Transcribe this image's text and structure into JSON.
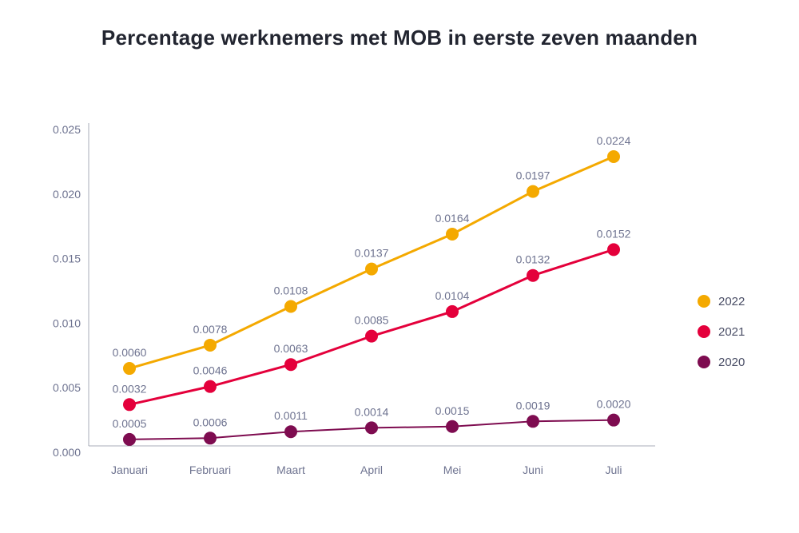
{
  "chart_data": {
    "type": "line",
    "title": "Percentage werknemers met MOB in eerste zeven maanden",
    "xlabel": "",
    "ylabel": "",
    "categories": [
      "Januari",
      "Februari",
      "Maart",
      "April",
      "Mei",
      "Juni",
      "Juli"
    ],
    "ylim": [
      0,
      0.025
    ],
    "yticks": [
      "0.000",
      "0.005",
      "0.010",
      "0.015",
      "0.020",
      "0.025"
    ],
    "grid": false,
    "legend_position": "right",
    "series": [
      {
        "name": "2022",
        "color": "#F4A900",
        "values": [
          0.006,
          0.0078,
          0.0108,
          0.0137,
          0.0164,
          0.0197,
          0.0224
        ],
        "labels": [
          "0.0060",
          "0.0078",
          "0.0108",
          "0.0137",
          "0.0164",
          "0.0197",
          "0.0224"
        ]
      },
      {
        "name": "2021",
        "color": "#E4003B",
        "values": [
          0.0032,
          0.0046,
          0.0063,
          0.0085,
          0.0104,
          0.0132,
          0.0152
        ],
        "labels": [
          "0.0032",
          "0.0046",
          "0.0063",
          "0.0085",
          "0.0104",
          "0.0132",
          "0.0152"
        ]
      },
      {
        "name": "2020",
        "color": "#7E0C50",
        "values": [
          0.0005,
          0.0006,
          0.0011,
          0.0014,
          0.0015,
          0.0019,
          0.002
        ],
        "labels": [
          "0.0005",
          "0.0006",
          "0.0011",
          "0.0014",
          "0.0015",
          "0.0019",
          "0.0020"
        ]
      }
    ]
  }
}
